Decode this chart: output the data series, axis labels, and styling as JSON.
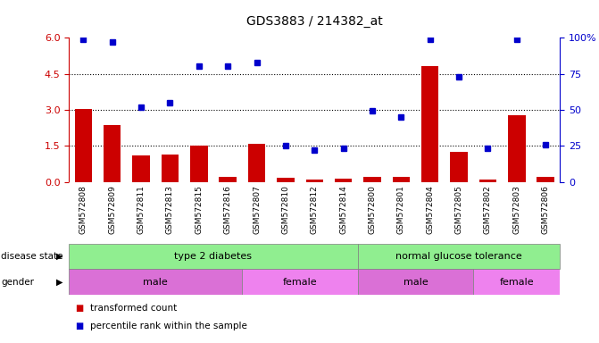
{
  "title": "GDS3883 / 214382_at",
  "samples": [
    "GSM572808",
    "GSM572809",
    "GSM572811",
    "GSM572813",
    "GSM572815",
    "GSM572816",
    "GSM572807",
    "GSM572810",
    "GSM572812",
    "GSM572814",
    "GSM572800",
    "GSM572801",
    "GSM572804",
    "GSM572805",
    "GSM572802",
    "GSM572803",
    "GSM572806"
  ],
  "transformed_count": [
    3.05,
    2.35,
    1.1,
    1.15,
    1.5,
    0.2,
    1.6,
    0.18,
    0.08,
    0.12,
    0.22,
    0.22,
    4.82,
    1.25,
    0.08,
    2.78,
    0.22
  ],
  "percentile_rank": [
    99,
    97,
    52,
    55,
    80,
    80,
    83,
    25,
    22,
    23,
    49,
    45,
    99,
    73,
    23,
    99,
    26
  ],
  "bar_color": "#cc0000",
  "dot_color": "#0000cc",
  "ylim_left": [
    0,
    6
  ],
  "ylim_right": [
    0,
    100
  ],
  "yticks_left": [
    0,
    1.5,
    3.0,
    4.5,
    6
  ],
  "yticks_right": [
    0,
    25,
    50,
    75,
    100
  ],
  "disease_color_t2d": "#90ee90",
  "disease_color_ngt": "#90ee90",
  "gender_color_male": "#da70d6",
  "gender_color_female": "#ee82ee",
  "bg_color": "#ffffff",
  "tick_bg_color": "#d3d3d3",
  "legend_bar_label": "transformed count",
  "legend_dot_label": "percentile rank within the sample",
  "t2d_count": 10,
  "male_t2d_count": 6,
  "female_t2d_count": 4,
  "male_ngt_count": 4,
  "female_ngt_count": 3
}
